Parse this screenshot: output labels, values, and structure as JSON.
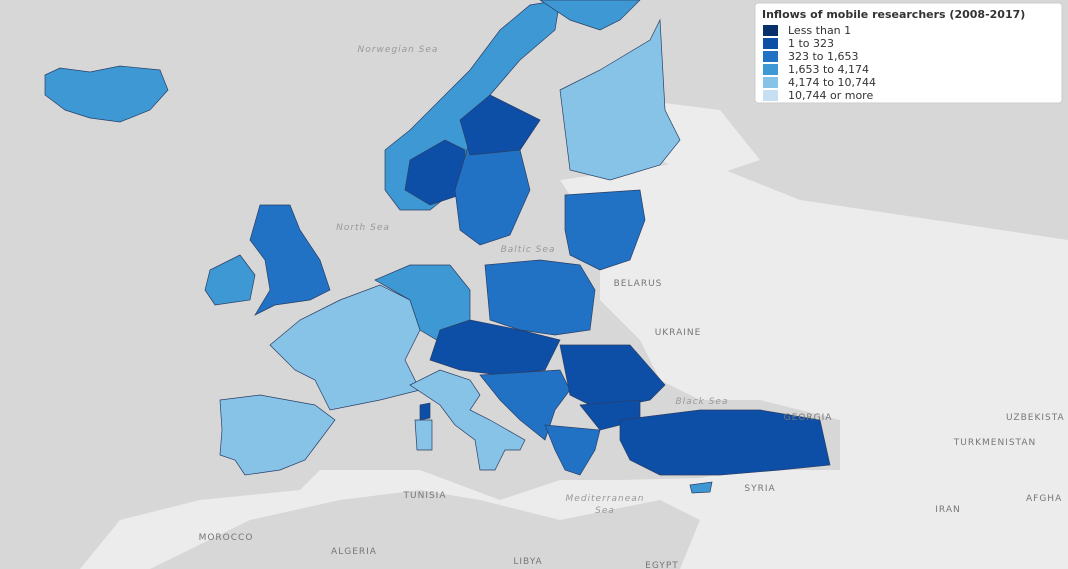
{
  "legend": {
    "title": "Inflows of mobile researchers (2008-2017)",
    "items": [
      {
        "label": "Less than 1",
        "color": "#08306b"
      },
      {
        "label": "1 to 323",
        "color": "#0d4ea6"
      },
      {
        "label": "323 to 1,653",
        "color": "#2171c4"
      },
      {
        "label": "1,653 to 4,174",
        "color": "#3d98d3"
      },
      {
        "label": "4,174 to 10,744",
        "color": "#86c3e7"
      },
      {
        "label": "10,744 or more",
        "color": "#c6dff2"
      }
    ]
  },
  "labels": [
    "Norwegian Sea",
    "North Sea",
    "Baltic Sea",
    "BELARUS",
    "UKRAINE",
    "Black Sea",
    "GEORGIA",
    "UZBEKISTA",
    "TURKMENISTAN",
    "IRAN",
    "AFGHA",
    "SYRIA",
    "TUNISIA",
    "MOROCCO",
    "ALGERIA",
    "LIBYA",
    "EGYPT",
    "Mediterranean",
    "Sea"
  ]
}
